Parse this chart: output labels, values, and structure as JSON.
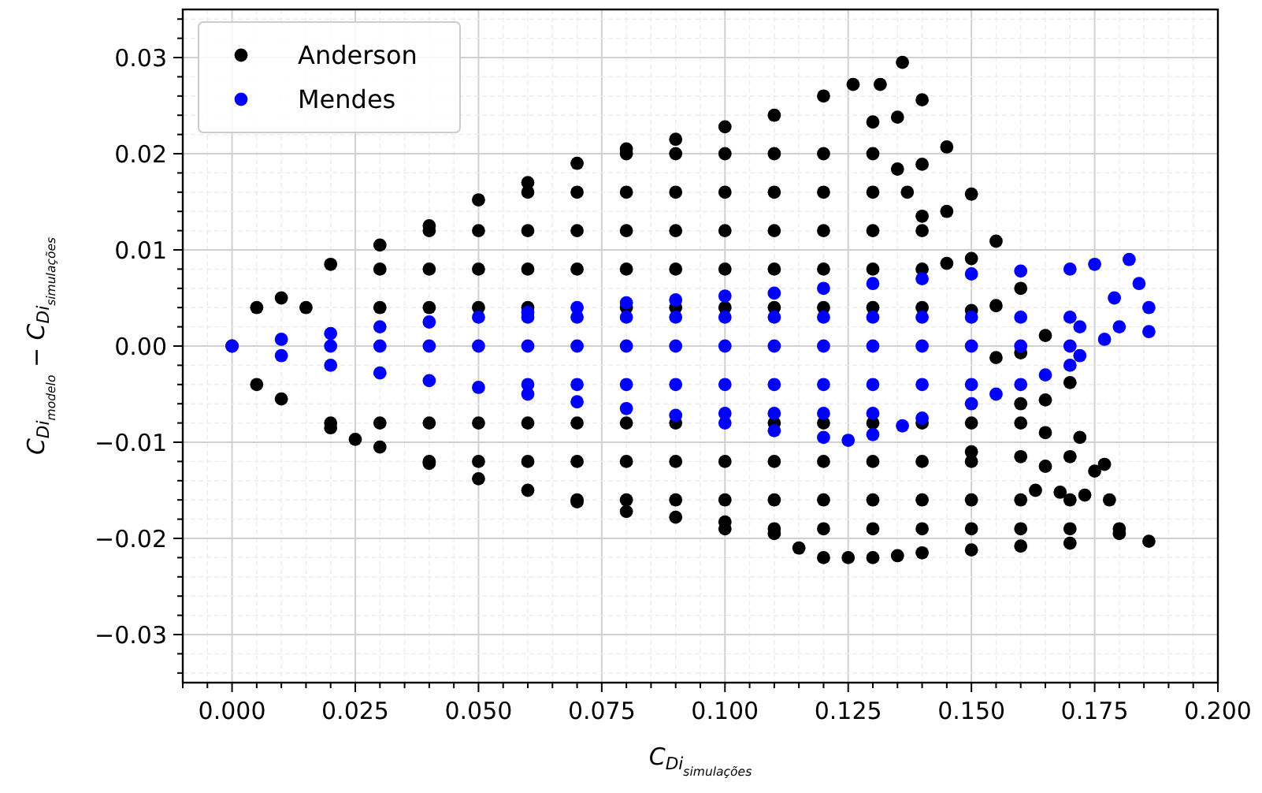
{
  "chart_data": {
    "type": "scatter",
    "xlabel": "C$_{Di}$$_{simulações}$",
    "ylabel": "C$_{Di}$$_{modelo}$ − C$_{Di}$$_{simulações}$",
    "xlim": [
      -0.01,
      0.2
    ],
    "ylim": [
      -0.035,
      0.035
    ],
    "xticks": [
      {
        "value": -0.01,
        "label": null
      },
      {
        "value": -0.005,
        "label": null
      },
      {
        "value": 0,
        "label": "0.000"
      },
      {
        "value": 0.005,
        "label": null
      },
      {
        "value": 0.01,
        "label": null
      },
      {
        "value": 0.015,
        "label": null
      },
      {
        "value": 0.02,
        "label": null
      },
      {
        "value": 0.025,
        "label": "0.025"
      },
      {
        "value": 0.03,
        "label": null
      },
      {
        "value": 0.035,
        "label": null
      },
      {
        "value": 0.04,
        "label": null
      },
      {
        "value": 0.045,
        "label": null
      },
      {
        "value": 0.05,
        "label": "0.050"
      },
      {
        "value": 0.055,
        "label": null
      },
      {
        "value": 0.06,
        "label": null
      },
      {
        "value": 0.065,
        "label": null
      },
      {
        "value": 0.07,
        "label": null
      },
      {
        "value": 0.075,
        "label": "0.075"
      },
      {
        "value": 0.08,
        "label": null
      },
      {
        "value": 0.085,
        "label": null
      },
      {
        "value": 0.09,
        "label": null
      },
      {
        "value": 0.095,
        "label": null
      },
      {
        "value": 0.1,
        "label": "0.100"
      },
      {
        "value": 0.105,
        "label": null
      },
      {
        "value": 0.11,
        "label": null
      },
      {
        "value": 0.115,
        "label": null
      },
      {
        "value": 0.12,
        "label": null
      },
      {
        "value": 0.125,
        "label": "0.125"
      },
      {
        "value": 0.13,
        "label": null
      },
      {
        "value": 0.135,
        "label": null
      },
      {
        "value": 0.14,
        "label": null
      },
      {
        "value": 0.145,
        "label": null
      },
      {
        "value": 0.15,
        "label": "0.150"
      },
      {
        "value": 0.155,
        "label": null
      },
      {
        "value": 0.16,
        "label": null
      },
      {
        "value": 0.165,
        "label": null
      },
      {
        "value": 0.17,
        "label": null
      },
      {
        "value": 0.175,
        "label": "0.175"
      },
      {
        "value": 0.18,
        "label": null
      },
      {
        "value": 0.185,
        "label": null
      },
      {
        "value": 0.19,
        "label": null
      },
      {
        "value": 0.195,
        "label": null
      },
      {
        "value": 0.2,
        "label": "0.200"
      }
    ],
    "yticks": [
      {
        "value": -0.034,
        "label": null
      },
      {
        "value": -0.032,
        "label": null
      },
      {
        "value": -0.03,
        "label": "−0.03"
      },
      {
        "value": -0.028,
        "label": null
      },
      {
        "value": -0.026,
        "label": null
      },
      {
        "value": -0.024,
        "label": null
      },
      {
        "value": -0.022,
        "label": null
      },
      {
        "value": -0.02,
        "label": "−0.02"
      },
      {
        "value": -0.018,
        "label": null
      },
      {
        "value": -0.016,
        "label": null
      },
      {
        "value": -0.014,
        "label": null
      },
      {
        "value": -0.012,
        "label": null
      },
      {
        "value": -0.01,
        "label": "−0.01"
      },
      {
        "value": -0.008,
        "label": null
      },
      {
        "value": -0.006,
        "label": null
      },
      {
        "value": -0.004,
        "label": null
      },
      {
        "value": -0.002,
        "label": null
      },
      {
        "value": 0,
        "label": "0.00"
      },
      {
        "value": 0.002,
        "label": null
      },
      {
        "value": 0.004,
        "label": null
      },
      {
        "value": 0.006,
        "label": null
      },
      {
        "value": 0.008,
        "label": null
      },
      {
        "value": 0.01,
        "label": "0.01"
      },
      {
        "value": 0.012,
        "label": null
      },
      {
        "value": 0.014,
        "label": null
      },
      {
        "value": 0.016,
        "label": null
      },
      {
        "value": 0.018,
        "label": null
      },
      {
        "value": 0.02,
        "label": "0.02"
      },
      {
        "value": 0.022,
        "label": null
      },
      {
        "value": 0.024,
        "label": null
      },
      {
        "value": 0.026,
        "label": null
      },
      {
        "value": 0.028,
        "label": null
      },
      {
        "value": 0.03,
        "label": "0.03"
      },
      {
        "value": 0.032,
        "label": null
      },
      {
        "value": 0.034,
        "label": null
      }
    ],
    "grid": true,
    "legend": "top left",
    "marker": "circle",
    "series": [
      {
        "name": "Anderson",
        "color": "#000000",
        "x": [
          0,
          0.005,
          0.01,
          0.02,
          0.03,
          0.04,
          0.05,
          0.06,
          0.07,
          0.08,
          0.09,
          0.1,
          0.11,
          0.12,
          0.126,
          0.1315,
          0.136,
          0.14,
          0.145,
          0.15,
          0.155,
          0.16,
          0.165,
          0.17,
          0.135,
          0.14,
          0.145,
          0.15,
          0.155,
          0.16,
          0.165,
          0.13,
          0.135,
          0.14,
          0.145,
          0.15,
          0.155,
          0.16,
          0.08,
          0.09,
          0.1,
          0.11,
          0.12,
          0.13,
          0.06,
          0.07,
          0.08,
          0.09,
          0.1,
          0.11,
          0.12,
          0.13,
          0.137,
          0.04,
          0.05,
          0.06,
          0.07,
          0.08,
          0.09,
          0.1,
          0.11,
          0.12,
          0.13,
          0.14,
          0.03,
          0.04,
          0.05,
          0.06,
          0.07,
          0.08,
          0.09,
          0.1,
          0.11,
          0.12,
          0.13,
          0.14,
          0.015,
          0.03,
          0.04,
          0.05,
          0.06,
          0.08,
          0.09,
          0.1,
          0.11,
          0.12,
          0.13,
          0.14,
          0.005,
          0.01,
          0.02,
          0.025,
          0.03,
          0.04,
          0.05,
          0.06,
          0.07,
          0.08,
          0.09,
          0.1,
          0.11,
          0.115,
          0.12,
          0.125,
          0.13,
          0.135,
          0.14,
          0.15,
          0.16,
          0.17,
          0.18,
          0.186,
          0.178,
          0.173,
          0.168,
          0.163,
          0.15,
          0.16,
          0.165,
          0.17,
          0.175,
          0.177,
          0.172,
          0.165,
          0.02,
          0.03,
          0.04,
          0.05,
          0.06,
          0.07,
          0.08,
          0.09,
          0.11,
          0.12,
          0.13,
          0.14,
          0.15,
          0.16,
          0.04,
          0.05,
          0.06,
          0.07,
          0.08,
          0.09,
          0.1,
          0.11,
          0.12,
          0.13,
          0.14,
          0.15,
          0.07,
          0.08,
          0.09,
          0.1,
          0.11,
          0.12,
          0.13,
          0.14,
          0.15,
          0.16,
          0.17,
          0.1,
          0.11,
          0.12,
          0.13,
          0.14,
          0.15,
          0.16,
          0.17,
          0.18
        ],
        "values": [
          0,
          0.004,
          0.005,
          0.0085,
          0.0105,
          0.0125,
          0.0152,
          0.017,
          0.019,
          0.0205,
          0.0215,
          0.0228,
          0.024,
          0.026,
          0.0272,
          0.0272,
          0.0295,
          0.0256,
          0.0207,
          0.0158,
          0.0109,
          0.006,
          0.0011,
          -0.0038,
          0.0238,
          0.0189,
          0.014,
          0.0091,
          0.0042,
          -0.0007,
          -0.0056,
          0.0233,
          0.0184,
          0.0135,
          0.0086,
          0.0037,
          -0.0012,
          -0.006,
          0.02,
          0.02,
          0.02,
          0.02,
          0.02,
          0.02,
          0.016,
          0.016,
          0.016,
          0.016,
          0.016,
          0.016,
          0.016,
          0.016,
          0.016,
          0.012,
          0.012,
          0.012,
          0.012,
          0.012,
          0.012,
          0.012,
          0.012,
          0.012,
          0.012,
          0.012,
          0.008,
          0.008,
          0.008,
          0.008,
          0.008,
          0.008,
          0.008,
          0.008,
          0.008,
          0.008,
          0.008,
          0.008,
          0.004,
          0.004,
          0.004,
          0.004,
          0.004,
          0.004,
          0.004,
          0.004,
          0.004,
          0.004,
          0.004,
          0.004,
          -0.004,
          -0.0055,
          -0.0085,
          -0.0097,
          -0.0105,
          -0.0122,
          -0.0138,
          -0.015,
          -0.0162,
          -0.0172,
          -0.0178,
          -0.0183,
          -0.0195,
          -0.021,
          -0.022,
          -0.022,
          -0.022,
          -0.0218,
          -0.0215,
          -0.0212,
          -0.0208,
          -0.0205,
          -0.0195,
          -0.0203,
          -0.016,
          -0.0155,
          -0.0152,
          -0.015,
          -0.011,
          -0.0115,
          -0.0125,
          -0.0115,
          -0.013,
          -0.0123,
          -0.0095,
          -0.009,
          -0.008,
          -0.008,
          -0.008,
          -0.008,
          -0.008,
          -0.008,
          -0.008,
          -0.008,
          -0.008,
          -0.008,
          -0.008,
          -0.008,
          -0.008,
          -0.008,
          -0.012,
          -0.012,
          -0.012,
          -0.012,
          -0.012,
          -0.012,
          -0.012,
          -0.012,
          -0.012,
          -0.012,
          -0.012,
          -0.012,
          -0.016,
          -0.016,
          -0.016,
          -0.016,
          -0.016,
          -0.016,
          -0.016,
          -0.016,
          -0.016,
          -0.016,
          -0.016,
          -0.019,
          -0.019,
          -0.019,
          -0.019,
          -0.019,
          -0.019,
          -0.019,
          -0.019,
          -0.019
        ]
      },
      {
        "name": "Mendes",
        "color": "#0000ff",
        "x": [
          0,
          0.01,
          0.02,
          0.03,
          0.04,
          0.05,
          0.06,
          0.07,
          0.08,
          0.09,
          0.1,
          0.11,
          0.12,
          0.13,
          0.14,
          0.15,
          0.16,
          0.17,
          0.175,
          0.182,
          0.184,
          0.186,
          0.186,
          0.179,
          0.18,
          0.177,
          0.172,
          0.172,
          0.01,
          0.02,
          0.03,
          0.04,
          0.05,
          0.06,
          0.07,
          0.08,
          0.09,
          0.1,
          0.11,
          0.12,
          0.125,
          0.13,
          0.136,
          0.14,
          0.15,
          0.155,
          0.16,
          0.165,
          0.17,
          0.02,
          0.03,
          0.04,
          0.05,
          0.06,
          0.07,
          0.08,
          0.09,
          0.1,
          0.11,
          0.12,
          0.13,
          0.14,
          0.15,
          0.16,
          0.17,
          0.06,
          0.07,
          0.08,
          0.09,
          0.1,
          0.11,
          0.12,
          0.13,
          0.14,
          0.15,
          0.16,
          0.17,
          0.06,
          0.07,
          0.08,
          0.09,
          0.1,
          0.11,
          0.12,
          0.13,
          0.14,
          0.15,
          0.1,
          0.11,
          0.12,
          0.13
        ],
        "values": [
          0,
          0.0007,
          0.0013,
          0.002,
          0.0025,
          0.003,
          0.0035,
          0.004,
          0.0045,
          0.0048,
          0.0052,
          0.0055,
          0.006,
          0.0065,
          0.007,
          0.0075,
          0.0078,
          0.008,
          0.0085,
          0.009,
          0.0065,
          0.004,
          0.0015,
          0.005,
          0.002,
          0.0007,
          0.002,
          -0.001,
          -0.001,
          -0.002,
          -0.0028,
          -0.0036,
          -0.0043,
          -0.005,
          -0.0058,
          -0.0065,
          -0.0072,
          -0.008,
          -0.0088,
          -0.0095,
          -0.0098,
          -0.0092,
          -0.0083,
          -0.0075,
          -0.006,
          -0.005,
          -0.004,
          -0.003,
          -0.002,
          0,
          0,
          0,
          0,
          0,
          0,
          0,
          0,
          0,
          0,
          0,
          0,
          0,
          0,
          0,
          0,
          0.003,
          0.003,
          0.003,
          0.003,
          0.003,
          0.003,
          0.003,
          0.003,
          0.003,
          0.003,
          0.003,
          0.003,
          -0.004,
          -0.004,
          -0.004,
          -0.004,
          -0.004,
          -0.004,
          -0.004,
          -0.004,
          -0.004,
          -0.004,
          -0.007,
          -0.007,
          -0.007,
          -0.007
        ]
      }
    ]
  }
}
